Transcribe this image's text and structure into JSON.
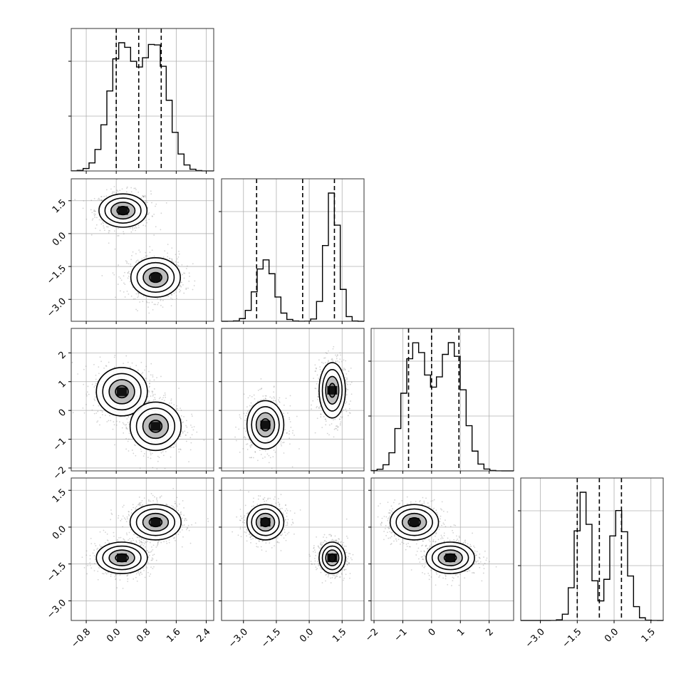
{
  "chart_data": {
    "type": "corner",
    "title": "",
    "grid": true,
    "colors": {
      "marks": "#000000",
      "points": "#808080",
      "grid": "#b0b0b0"
    },
    "parameters": [
      {
        "name": "",
        "range": [
          -1.2,
          2.6
        ],
        "ticks": [
          -0.8,
          0.0,
          0.8,
          1.6,
          2.4
        ],
        "tick_labels": [
          "−0.8",
          "0.0",
          "0.8",
          "1.6",
          "2.4"
        ]
      },
      {
        "name": "",
        "range": [
          -4.0,
          2.5
        ],
        "ticks": [
          -3.0,
          -1.5,
          0.0,
          1.5
        ],
        "tick_labels": [
          "−3.0",
          "−1.5",
          "0.0",
          "1.5"
        ]
      },
      {
        "name": "",
        "range": [
          -2.1,
          2.85
        ],
        "ticks": [
          -2,
          -1,
          0,
          1,
          2
        ],
        "tick_labels": [
          "−2",
          "−1",
          "0",
          "1",
          "2"
        ]
      },
      {
        "name": "",
        "range": [
          -3.8,
          2.0
        ],
        "ticks": [
          -3.0,
          -1.5,
          0.0,
          1.5
        ],
        "tick_labels": [
          "−3.0",
          "−1.5",
          "0.0",
          "1.5"
        ]
      }
    ],
    "histograms": [
      {
        "param": 0,
        "quantiles": [
          0.0,
          0.6,
          1.2
        ],
        "peak": 1.0,
        "mixture": [
          {
            "mu": 0.15,
            "sigma": 0.34,
            "w": 0.5
          },
          {
            "mu": 1.05,
            "sigma": 0.34,
            "w": 0.5
          }
        ]
      },
      {
        "param": 1,
        "quantiles": [
          -2.4,
          -0.3,
          1.15
        ],
        "peak": 1.0,
        "mixture": [
          {
            "mu": -2.0,
            "sigma": 0.42,
            "w": 0.4
          },
          {
            "mu": 1.05,
            "sigma": 0.3,
            "w": 0.6
          }
        ]
      },
      {
        "param": 2,
        "quantiles": [
          -0.8,
          0.0,
          0.95
        ],
        "peak": 1.0,
        "mixture": [
          {
            "mu": -0.55,
            "sigma": 0.42,
            "w": 0.5
          },
          {
            "mu": 0.7,
            "sigma": 0.42,
            "w": 0.5
          }
        ]
      },
      {
        "param": 3,
        "quantiles": [
          -1.5,
          -0.6,
          0.3
        ],
        "peak": 1.0,
        "mixture": [
          {
            "mu": -1.25,
            "sigma": 0.3,
            "w": 0.5
          },
          {
            "mu": 0.2,
            "sigma": 0.35,
            "w": 0.5
          }
        ]
      }
    ],
    "pairs": [
      {
        "x_param": 0,
        "y_param": 1,
        "clusters": [
          {
            "mx": 0.18,
            "my": 1.05,
            "sx": 0.32,
            "sy": 0.38
          },
          {
            "mx": 1.05,
            "my": -2.0,
            "sx": 0.33,
            "sy": 0.45
          }
        ]
      },
      {
        "x_param": 0,
        "y_param": 2,
        "clusters": [
          {
            "mx": 0.15,
            "my": 0.65,
            "sx": 0.34,
            "sy": 0.42
          },
          {
            "mx": 1.05,
            "my": -0.55,
            "sx": 0.34,
            "sy": 0.42
          }
        ]
      },
      {
        "x_param": 1,
        "y_param": 2,
        "clusters": [
          {
            "mx": -2.0,
            "my": -0.5,
            "sx": 0.42,
            "sy": 0.42
          },
          {
            "mx": 1.05,
            "my": 0.7,
            "sx": 0.3,
            "sy": 0.48
          }
        ]
      },
      {
        "x_param": 0,
        "y_param": 3,
        "clusters": [
          {
            "mx": 0.15,
            "my": -1.25,
            "sx": 0.34,
            "sy": 0.32
          },
          {
            "mx": 1.05,
            "my": 0.2,
            "sx": 0.34,
            "sy": 0.36
          }
        ]
      },
      {
        "x_param": 1,
        "y_param": 3,
        "clusters": [
          {
            "mx": -2.0,
            "my": 0.2,
            "sx": 0.42,
            "sy": 0.36
          },
          {
            "mx": 1.05,
            "my": -1.25,
            "sx": 0.3,
            "sy": 0.32
          }
        ]
      },
      {
        "x_param": 2,
        "y_param": 3,
        "clusters": [
          {
            "mx": -0.6,
            "my": 0.2,
            "sx": 0.42,
            "sy": 0.36
          },
          {
            "mx": 0.65,
            "my": -1.25,
            "sx": 0.42,
            "sy": 0.32
          }
        ]
      }
    ],
    "contour_levels_sigma": [
      0.5,
      1.0,
      1.5,
      2.0
    ]
  }
}
